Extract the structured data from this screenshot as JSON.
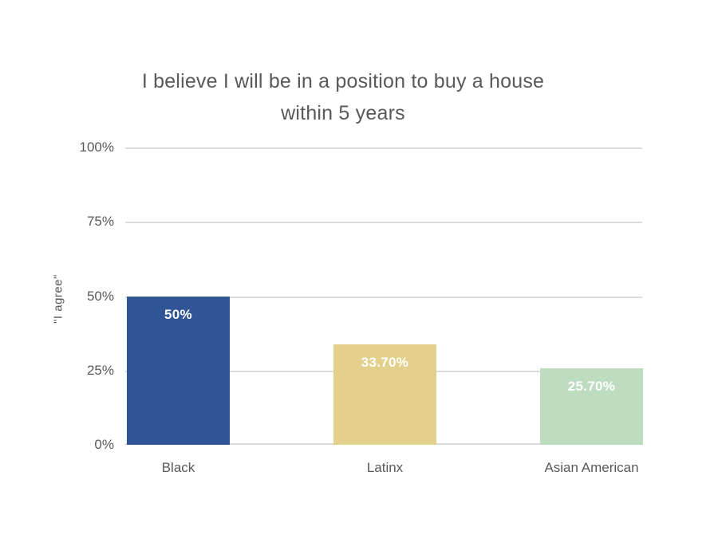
{
  "chart_data": {
    "type": "bar",
    "title_line1": "I believe I will be in a position to buy a house",
    "title_line2": "within 5 years",
    "categories": [
      "Black",
      "Latinx",
      "Asian American"
    ],
    "values": [
      50,
      33.7,
      25.7
    ],
    "value_labels": [
      "50%",
      "33.70%",
      "25.70%"
    ],
    "bar_colors": [
      "#2f5597",
      "#e3d08d",
      "#bddcc0"
    ],
    "ylabel": "\"I agree\"",
    "y_ticks": [
      "100%",
      "75%",
      "50%",
      "25%",
      "0%"
    ],
    "ylim": [
      0,
      100
    ],
    "grid": true,
    "legend_position": "none"
  },
  "colors": {
    "background": "#ffffff",
    "title_text": "#595959",
    "axis_text": "#595959",
    "category_text": "#58595b",
    "gridline": "#dcdcdc",
    "value_label_text": "#ffffff"
  }
}
